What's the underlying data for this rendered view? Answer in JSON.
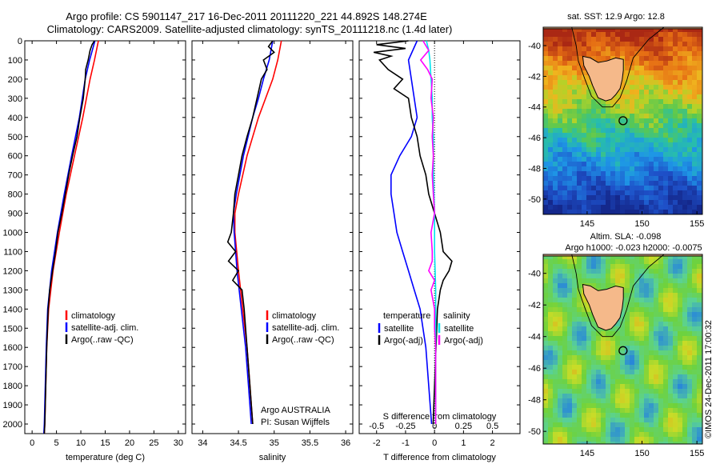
{
  "title_line1": "Argo profile: CS 5901147_217 16-Dec-2011 20111220_221 44.892S 148.274E",
  "title_line2": "Climatology: CARS2009. Satellite-adjusted climatology: synTS_20111218.nc (1.4d later)",
  "depth_ticks": [
    0,
    100,
    200,
    300,
    400,
    500,
    600,
    700,
    800,
    900,
    1000,
    1100,
    1200,
    1300,
    1400,
    1500,
    1600,
    1700,
    1800,
    1900,
    2000
  ],
  "colors": {
    "climatology": "#ff0000",
    "satellite": "#0000ff",
    "argo": "#000000",
    "sat_salinity": "#00e5ee",
    "argo_adj_salinity": "#ff00ff"
  },
  "chart_data": [
    {
      "type": "line",
      "xlabel": "temperature (deg C)",
      "xticks": [
        0,
        5,
        10,
        15,
        20,
        25,
        30
      ],
      "xlim": [
        -1.5,
        31.5
      ],
      "ylim": [
        2050,
        0
      ],
      "legend": [
        "climatology",
        "satellite-adj. clim.",
        "Argo(..raw -QC)"
      ],
      "series": [
        {
          "name": "climatology",
          "depth": [
            0,
            100,
            200,
            400,
            600,
            800,
            1000,
            1200,
            1400,
            1600,
            1800,
            2000,
            2050
          ],
          "values": [
            13.6,
            12.8,
            11.9,
            10.4,
            8.7,
            7.0,
            5.6,
            4.3,
            3.4,
            3.0,
            2.8,
            2.6,
            2.5
          ]
        },
        {
          "name": "satellite-adj. clim.",
          "depth": [
            0,
            100,
            200,
            400,
            600,
            800,
            1000,
            1200,
            1400,
            1600,
            1800,
            2000,
            2050
          ],
          "values": [
            12.9,
            11.8,
            10.9,
            9.7,
            8.1,
            6.6,
            5.2,
            4.0,
            3.2,
            2.9,
            2.7,
            2.5,
            2.4
          ]
        },
        {
          "name": "Argo(..raw -QC)",
          "depth": [
            0,
            20,
            50,
            100,
            150,
            200,
            300,
            400,
            500,
            600,
            700,
            800,
            900,
            1000,
            1100,
            1200,
            1300,
            1400,
            1600,
            1800,
            2000,
            2050
          ],
          "values": [
            12.8,
            12.3,
            11.9,
            11.5,
            11.0,
            10.9,
            10.5,
            9.8,
            9.2,
            8.3,
            7.5,
            6.8,
            6.1,
            5.3,
            4.8,
            4.2,
            3.6,
            3.3,
            3.0,
            2.8,
            2.6,
            2.5
          ]
        }
      ]
    },
    {
      "type": "line",
      "xlabel": "salinity",
      "xticks": [
        34,
        34.5,
        35,
        35.5,
        36
      ],
      "xlim": [
        33.85,
        36.1
      ],
      "ylim": [
        2050,
        0
      ],
      "legend": [
        "climatology",
        "satellite-adj. clim.",
        "Argo(..raw -QC)"
      ],
      "annotation": [
        "Argo AUSTRALIA",
        "PI: Susan Wijffels"
      ],
      "series": [
        {
          "name": "climatology",
          "depth": [
            0,
            100,
            200,
            300,
            400,
            600,
            800,
            900,
            1000,
            1200,
            1400,
            1600,
            1800,
            2000
          ],
          "values": [
            35.1,
            35.05,
            34.98,
            34.88,
            34.78,
            34.62,
            34.5,
            34.45,
            34.45,
            34.5,
            34.56,
            34.62,
            34.66,
            34.7
          ]
        },
        {
          "name": "satellite-adj. clim.",
          "depth": [
            0,
            100,
            200,
            300,
            400,
            600,
            800,
            900,
            1000,
            1200,
            1400,
            1600,
            1800,
            2000
          ],
          "values": [
            34.98,
            34.93,
            34.85,
            34.78,
            34.7,
            34.57,
            34.47,
            34.43,
            34.44,
            34.48,
            34.54,
            34.6,
            34.64,
            34.68
          ]
        },
        {
          "name": "Argo(..raw -QC)",
          "depth": [
            0,
            30,
            60,
            100,
            150,
            200,
            300,
            400,
            500,
            600,
            700,
            800,
            900,
            1000,
            1050,
            1100,
            1150,
            1200,
            1250,
            1300,
            1400,
            1500,
            1600,
            1800,
            2000
          ],
          "values": [
            34.98,
            34.92,
            35.0,
            34.85,
            34.9,
            34.82,
            34.76,
            34.7,
            34.62,
            34.55,
            34.5,
            34.45,
            34.43,
            34.4,
            34.35,
            34.46,
            34.36,
            34.5,
            34.42,
            34.55,
            34.58,
            34.6,
            34.62,
            34.66,
            34.7
          ]
        }
      ]
    },
    {
      "type": "line",
      "xlabel": "T difference from climatology",
      "xlabel_top": "S difference from climatology",
      "xticks": [
        -2,
        -1,
        0,
        1,
        2
      ],
      "xlim": [
        -2.6,
        2.95
      ],
      "xticks_top": [
        -0.5,
        -0.25,
        0,
        0.25,
        0.5
      ],
      "ylim": [
        2050,
        0
      ],
      "legend_groups": [
        {
          "heading": "temperature",
          "entries": [
            "satellite",
            "Argo(-adj)"
          ]
        },
        {
          "heading": "salinity",
          "entries": [
            "satellite",
            "Argo(-adj)"
          ]
        }
      ],
      "series": [
        {
          "name": "temperature satellite",
          "depth": [
            0,
            100,
            200,
            300,
            400,
            500,
            600,
            700,
            800,
            900,
            1000,
            1100,
            1200,
            1300,
            1400,
            1500,
            1600,
            1800,
            2000
          ],
          "values": [
            -0.6,
            -0.9,
            -0.8,
            -0.7,
            -0.6,
            -0.8,
            -1.2,
            -1.5,
            -1.5,
            -1.4,
            -1.3,
            -1.1,
            -0.9,
            -0.7,
            -0.5,
            -0.4,
            -0.3,
            -0.2,
            -0.1
          ]
        },
        {
          "name": "temperature Argo(-adj)",
          "depth": [
            0,
            20,
            40,
            60,
            80,
            100,
            150,
            200,
            250,
            300,
            400,
            500,
            600,
            700,
            800,
            900,
            1000,
            1100,
            1150,
            1200,
            1250,
            1300,
            1400,
            1600,
            1800,
            2000
          ],
          "values": [
            -0.9,
            -2.0,
            -1.0,
            -2.1,
            -1.5,
            -1.9,
            -1.6,
            -1.1,
            -1.4,
            -0.9,
            -0.8,
            -0.6,
            -0.5,
            -0.3,
            -0.2,
            0.0,
            0.2,
            0.3,
            0.6,
            0.5,
            0.3,
            0.2,
            0.1,
            0.05,
            0.0,
            -0.05
          ]
        },
        {
          "name": "salinity satellite",
          "depth": [
            0,
            50,
            100,
            200,
            300,
            400,
            500,
            700,
            900,
            1100,
            1300,
            1500,
            1700,
            1900,
            2000
          ],
          "values": [
            -0.07,
            -0.05,
            -0.04,
            -0.03,
            -0.02,
            -0.02,
            -0.01,
            -0.01,
            0.0,
            0.0,
            0.01,
            0.01,
            0.01,
            0.01,
            0.01
          ]
        },
        {
          "name": "salinity Argo(-adj)",
          "depth": [
            0,
            50,
            100,
            150,
            200,
            300,
            400,
            500,
            600,
            700,
            800,
            900,
            1000,
            1100,
            1150,
            1200,
            1250,
            1300,
            1400,
            1500,
            1600,
            1800,
            2000
          ],
          "values": [
            -0.1,
            -0.05,
            -0.12,
            -0.06,
            -0.02,
            -0.03,
            -0.01,
            -0.02,
            -0.01,
            -0.02,
            -0.01,
            0.0,
            -0.03,
            -0.02,
            -0.02,
            -0.05,
            0.0,
            -0.03,
            0.0,
            0.0,
            0.01,
            0.01,
            0.01
          ]
        }
      ]
    },
    {
      "type": "heatmap",
      "title": "sat. SST: 12.9  Argo: 12.8",
      "xticks": [
        145,
        150,
        155
      ],
      "yticks": [
        -40,
        -42,
        -44,
        -46,
        -48,
        -50
      ],
      "xlim": [
        141,
        155.5
      ],
      "ylim": [
        -51,
        -38.8
      ],
      "marker": {
        "lon": 148.274,
        "lat": -44.892
      }
    },
    {
      "type": "heatmap",
      "title": "Altim. SLA: -0.098",
      "subtitle": "Argo h1000: -0.023  h2000: -0.0075",
      "xticks": [
        145,
        150,
        155
      ],
      "yticks": [
        -40,
        -42,
        -44,
        -46,
        -48,
        -50
      ],
      "xlim": [
        141,
        155.5
      ],
      "ylim": [
        -50.8,
        -38.8
      ],
      "marker": {
        "lon": 148.274,
        "lat": -44.892
      }
    }
  ],
  "stamp": "©IMOS 24-Dec-2011 17:00:32"
}
